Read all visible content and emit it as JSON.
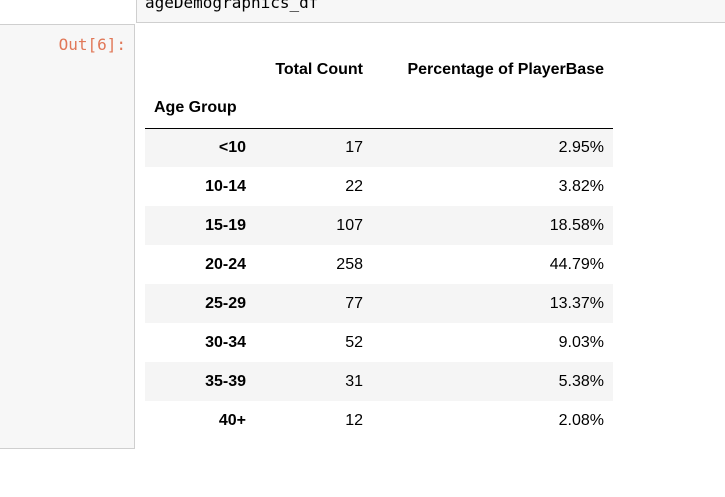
{
  "input_cell": {
    "code": "ageDemographics_df"
  },
  "output": {
    "prompt": "Out[6]:",
    "columns": [
      "Total Count",
      "Percentage of PlayerBase"
    ],
    "index_name": "Age Group",
    "rows": [
      {
        "label": "<10",
        "count": "17",
        "pct": "2.95%"
      },
      {
        "label": "10-14",
        "count": "22",
        "pct": "3.82%"
      },
      {
        "label": "15-19",
        "count": "107",
        "pct": "18.58%"
      },
      {
        "label": "20-24",
        "count": "258",
        "pct": "44.79%"
      },
      {
        "label": "25-29",
        "count": "77",
        "pct": "13.37%"
      },
      {
        "label": "30-34",
        "count": "52",
        "pct": "9.03%"
      },
      {
        "label": "35-39",
        "count": "31",
        "pct": "5.38%"
      },
      {
        "label": "40+",
        "count": "12",
        "pct": "2.08%"
      }
    ]
  },
  "colors": {
    "prompt_out": "#d84315",
    "cell_background": "#f7f7f7",
    "row_stripe": "#f5f5f5",
    "border": "#cfcfcf"
  }
}
